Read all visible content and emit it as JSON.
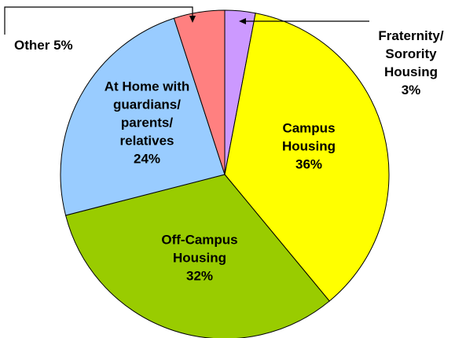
{
  "chart_data": {
    "type": "pie",
    "categories": [
      "Fraternity/ Sorority Housing",
      "Campus Housing",
      "Off-Campus Housing",
      "At Home with guardians/ parents/ relatives",
      "Other"
    ],
    "values": [
      3,
      36,
      32,
      24,
      5
    ],
    "value_labels": [
      "3%",
      "36%",
      "32%",
      "24%",
      "5%"
    ],
    "colors": [
      "#cc99ff",
      "#ffff00",
      "#99cc00",
      "#99ccff",
      "#ff8080"
    ]
  }
}
